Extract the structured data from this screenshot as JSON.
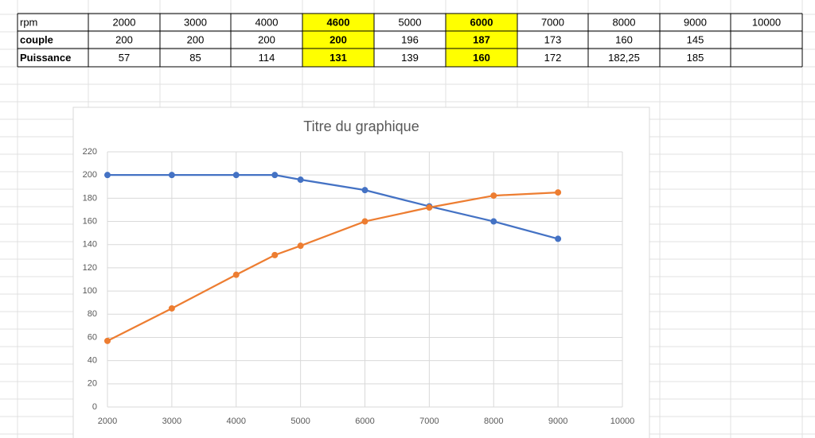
{
  "table": {
    "rows": [
      [
        "rpm",
        "2000",
        "3000",
        "4000",
        "4600",
        "5000",
        "6000",
        "7000",
        "8000",
        "9000",
        "10000"
      ],
      [
        "couple",
        "200",
        "200",
        "200",
        "200",
        "196",
        "187",
        "173",
        "160",
        "145",
        null
      ],
      [
        "Puissance",
        "57",
        "85",
        "114",
        "131",
        "139",
        "160",
        "172",
        "182,25",
        "185",
        null
      ]
    ]
  },
  "chart_data": {
    "type": "line",
    "title": "Titre du graphique",
    "x": [
      2000,
      3000,
      4000,
      4600,
      5000,
      6000,
      7000,
      8000,
      9000
    ],
    "series": [
      {
        "color": "#4472c4",
        "values": [
          200,
          200,
          200,
          200,
          196,
          187,
          173,
          160,
          145
        ]
      },
      {
        "color": "#ed7d31",
        "values": [
          57,
          85,
          114,
          131,
          139,
          160,
          172,
          182.25,
          185
        ]
      }
    ],
    "xlim": [
      2000,
      10000
    ],
    "xticks": [
      2000,
      3000,
      4000,
      5000,
      6000,
      7000,
      8000,
      9000,
      10000
    ],
    "ylim": [
      0,
      220
    ],
    "yticks": [
      0,
      20,
      40,
      60,
      80,
      100,
      120,
      140,
      160,
      180,
      200,
      220
    ],
    "grid": true
  }
}
